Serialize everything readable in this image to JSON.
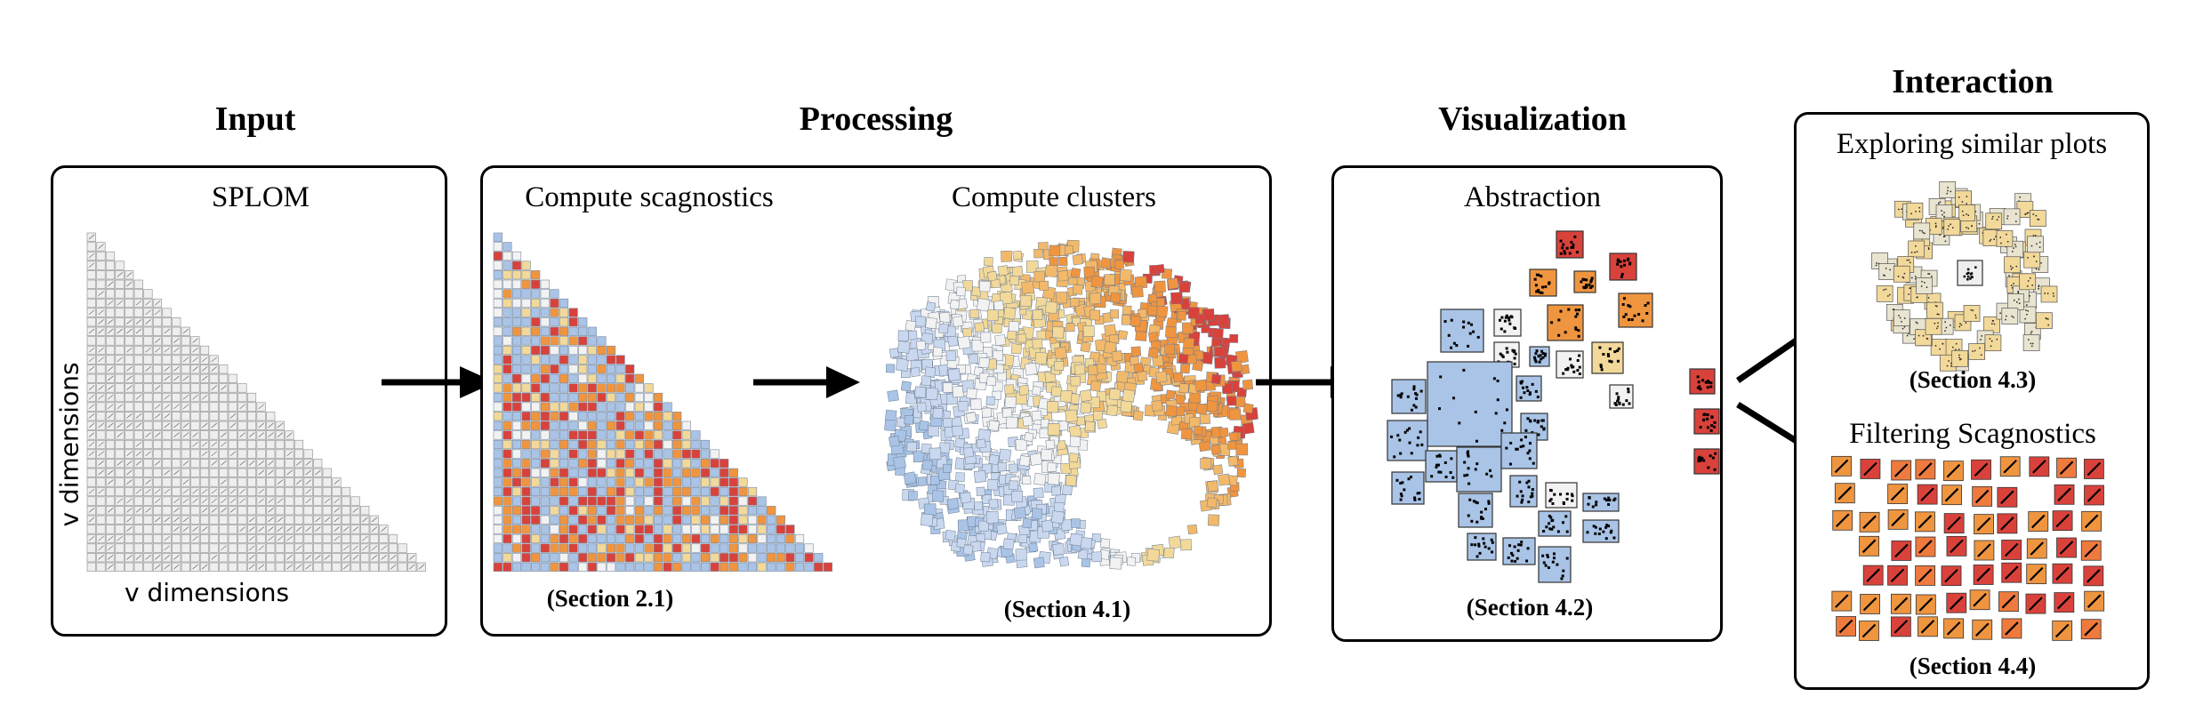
{
  "stages": {
    "input": "Input",
    "processing": "Processing",
    "visualization": "Visualization",
    "interaction": "Interaction"
  },
  "input_panel": {
    "subtitle": "SPLOM",
    "x_axis": "v dimensions",
    "y_axis": "v dimensions"
  },
  "processing_panel": {
    "scagnostics_title": "Compute scagnostics",
    "scagnostics_section": "(Section 2.1)",
    "clusters_title": "Compute clusters",
    "clusters_section": "(Section 4.1)"
  },
  "visualization_panel": {
    "subtitle": "Abstraction",
    "section": "(Section 4.2)"
  },
  "interaction_panel": {
    "explore_title": "Exploring similar plots",
    "explore_section": "(Section 4.3)",
    "filter_title": "Filtering Scagnostics",
    "filter_section": "(Section 4.4)"
  },
  "colors": {
    "blue": "#a9c4e6",
    "white": "#f2f2f2",
    "yellow": "#f2d99a",
    "orange": "#ef9540",
    "red": "#d9423b",
    "grid_gray": "#c8c8c8"
  }
}
